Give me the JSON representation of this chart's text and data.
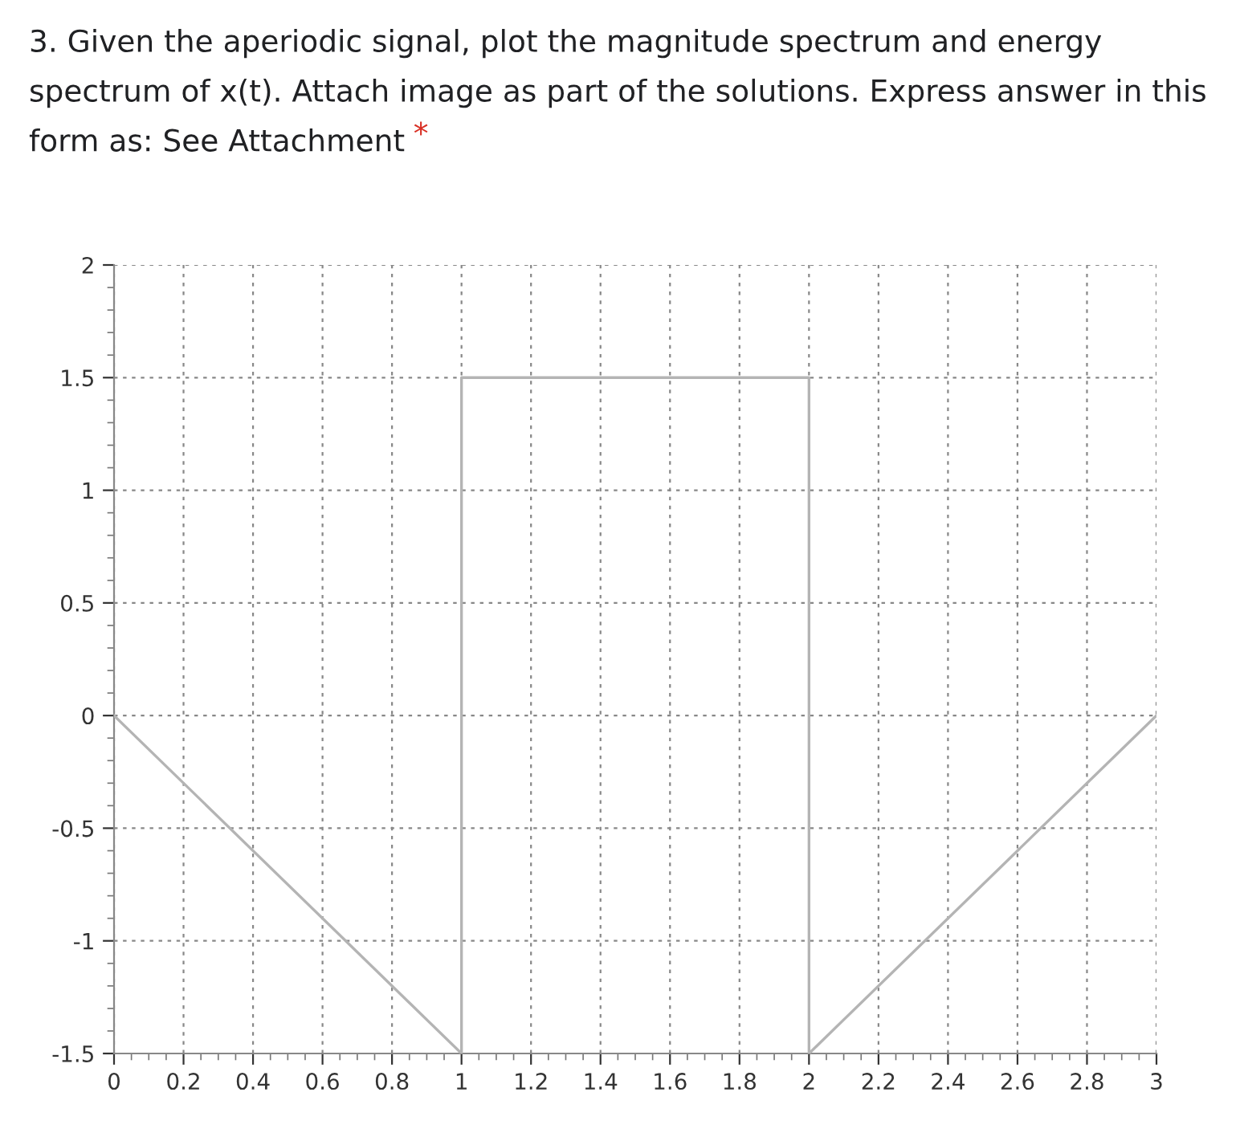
{
  "chart_data": {
    "type": "line",
    "title": "3. Given the aperiodic signal, plot the magnitude spectrum and energy spectrum of x(t). Attach image as part of the solutions. Express answer in this form as: See Attachment",
    "annotations": [
      "*"
    ],
    "series": [
      {
        "color": "#b4b4b4",
        "x": [
          0,
          1,
          1,
          2,
          2,
          3
        ],
        "values": [
          0,
          -1.5,
          1.5,
          1.5,
          -1.5,
          0
        ]
      }
    ],
    "xlim": [
      0,
      3
    ],
    "xticks": [
      0,
      0.2,
      0.4,
      0.6,
      0.8,
      1,
      1.2,
      1.4,
      1.6,
      1.8,
      2,
      2.2,
      2.4,
      2.6,
      2.8,
      3
    ],
    "ylim": [
      -1.5,
      2
    ],
    "yticks": [
      -1.5,
      -1,
      -0.5,
      0,
      0.5,
      1,
      1.5,
      2
    ],
    "grid": true,
    "legend": false,
    "marker": "none",
    "line_style": "solid"
  }
}
